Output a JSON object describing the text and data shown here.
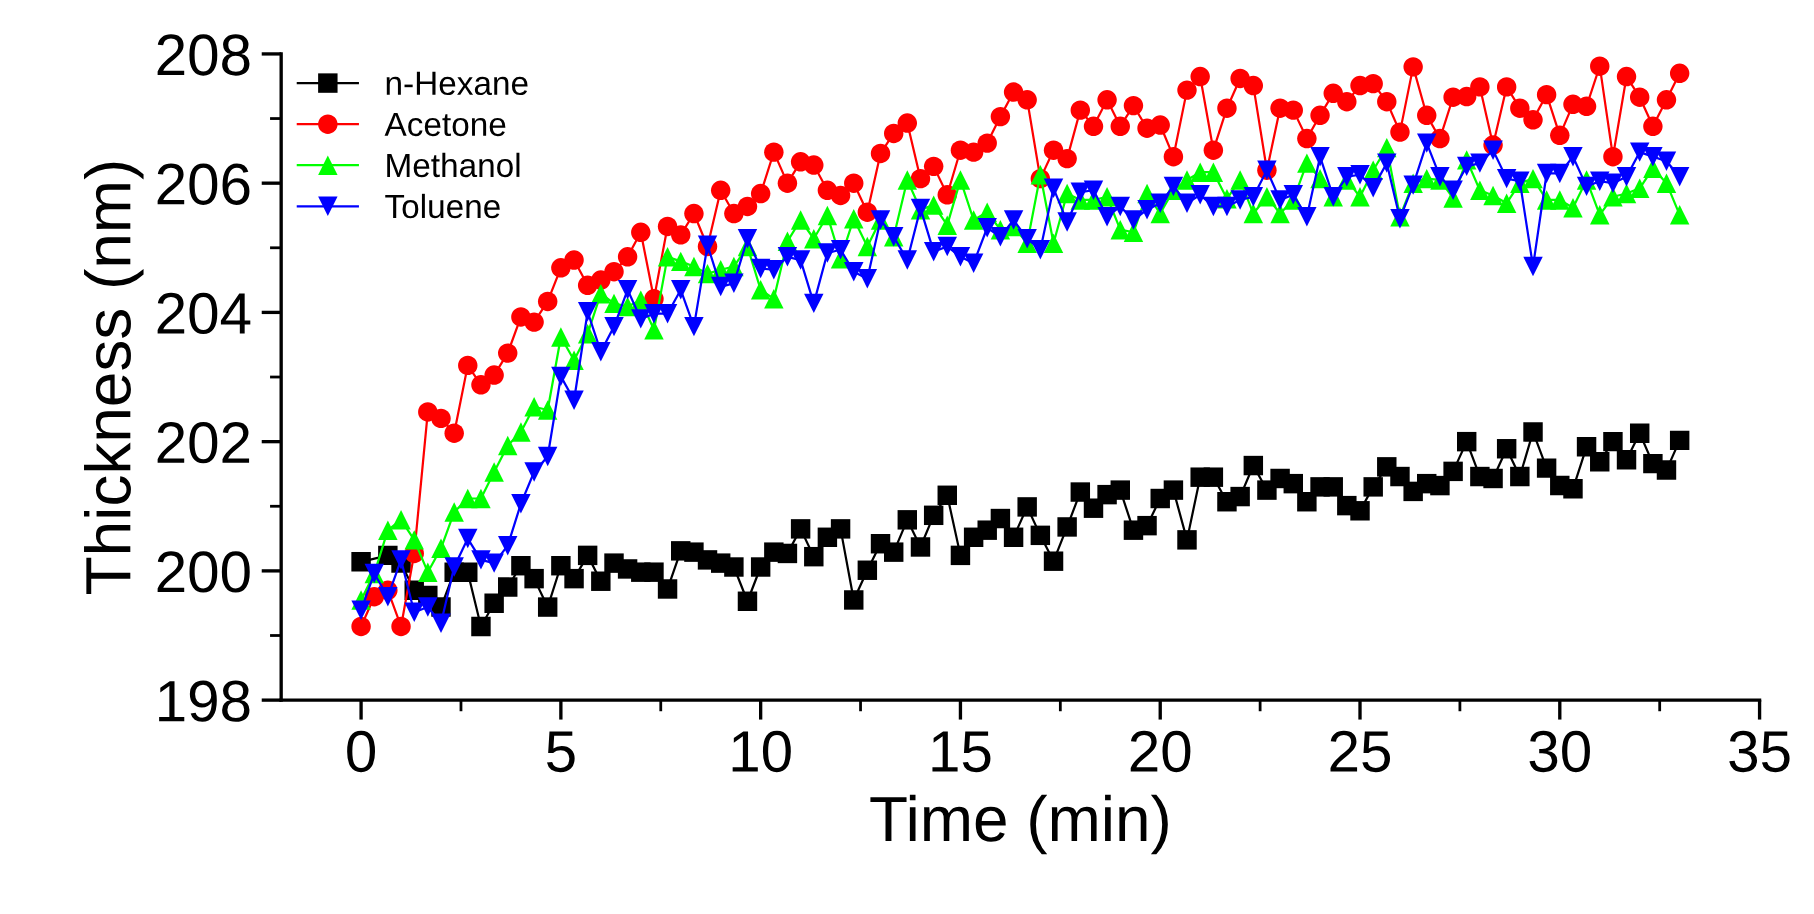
{
  "chart_data": {
    "type": "line",
    "xlabel": "Time (min)",
    "ylabel": "Thickness (nm)",
    "xlim": [
      -2,
      35
    ],
    "ylim": [
      198,
      208
    ],
    "xticks": [
      0,
      {
        "value": 2.5,
        "label": null
      },
      5,
      {
        "value": 7.5,
        "label": null
      },
      10,
      {
        "value": 12.5,
        "label": null
      },
      15,
      {
        "value": 17.5,
        "label": null
      },
      20,
      {
        "value": 22.5,
        "label": null
      },
      25,
      {
        "value": 27.5,
        "label": null
      },
      30,
      {
        "value": 32.5,
        "label": null
      },
      35
    ],
    "yticks": [
      198,
      {
        "value": 199,
        "label": null
      },
      200,
      {
        "value": 201,
        "label": null
      },
      202,
      {
        "value": 203,
        "label": null
      },
      204,
      {
        "value": 205,
        "label": null
      },
      206,
      {
        "value": 207,
        "label": null
      },
      208
    ],
    "grid": false,
    "legend": "top left",
    "line_style": "solid",
    "x": [
      0,
      0.33,
      0.67,
      1,
      1.33,
      1.67,
      2,
      2.33,
      2.67,
      3,
      3.33,
      3.67,
      4,
      4.33,
      4.67,
      5,
      5.33,
      5.67,
      6,
      6.33,
      6.67,
      7,
      7.33,
      7.67,
      8,
      8.33,
      8.67,
      9,
      9.33,
      9.67,
      10,
      10.33,
      10.67,
      11,
      11.33,
      11.67,
      12,
      12.33,
      12.67,
      13,
      13.33,
      13.67,
      14,
      14.33,
      14.67,
      15,
      15.33,
      15.67,
      16,
      16.33,
      16.67,
      17,
      17.33,
      17.67,
      18,
      18.33,
      18.67,
      19,
      19.33,
      19.67,
      20,
      20.33,
      20.67,
      21,
      21.33,
      21.67,
      22,
      22.33,
      22.67,
      23,
      23.33,
      23.67,
      24,
      24.33,
      24.67,
      25,
      25.33,
      25.67,
      26,
      26.33,
      26.67,
      27,
      27.33,
      27.67,
      28,
      28.33,
      28.67,
      29,
      29.33,
      29.67,
      30,
      30.33,
      30.67,
      31,
      31.33,
      31.67,
      32,
      32.33,
      32.67,
      33
    ],
    "series": [
      {
        "name": "n-Hexane",
        "color": "#000000",
        "marker": "square",
        "x": [
          0,
          0.67,
          1,
          1.33,
          1.67,
          2,
          2.33,
          2.67,
          3,
          3.33,
          3.67,
          4,
          4.33,
          4.67,
          5,
          5.33,
          5.67,
          6,
          6.33,
          6.67,
          7,
          7.33,
          7.67,
          8,
          8.33,
          8.67,
          9,
          9.33,
          9.67,
          10,
          10.33,
          10.67,
          11,
          11.33,
          11.67,
          12,
          12.33,
          12.67,
          13,
          13.33,
          13.67,
          14,
          14.33,
          14.67,
          15,
          15.33,
          15.67,
          16,
          16.33,
          16.67,
          17,
          17.33,
          17.67,
          18,
          18.33,
          18.67,
          19,
          19.33,
          19.67,
          20,
          20.33,
          20.67,
          21,
          21.33,
          21.67,
          22,
          22.33,
          22.67,
          23,
          23.33,
          23.67,
          24,
          24.33,
          24.67,
          25,
          25.33,
          25.67,
          26,
          26.33,
          26.67,
          27,
          27.33,
          27.67,
          28,
          28.33,
          28.67,
          29,
          29.33,
          29.67,
          30,
          30.33,
          30.67,
          31,
          31.33,
          31.67,
          32,
          32.33,
          32.67,
          33
        ],
        "values": [
          200.14,
          200.24,
          200.12,
          199.7,
          199.62,
          199.44,
          199.98,
          199.98,
          199.14,
          199.5,
          199.75,
          200.08,
          199.88,
          199.44,
          200.08,
          199.88,
          200.24,
          199.84,
          200.12,
          200.03,
          199.98,
          199.98,
          199.72,
          200.31,
          200.29,
          200.17,
          200.12,
          200.06,
          199.53,
          200.06,
          200.29,
          200.27,
          200.65,
          200.22,
          200.52,
          200.65,
          199.55,
          200.01,
          200.42,
          200.29,
          200.79,
          200.37,
          200.86,
          201.17,
          200.24,
          200.52,
          200.63,
          200.81,
          200.52,
          200.99,
          200.55,
          200.15,
          200.68,
          201.22,
          200.97,
          201.18,
          201.25,
          200.63,
          200.7,
          201.12,
          201.25,
          200.48,
          201.45,
          201.45,
          201.07,
          201.15,
          201.63,
          201.25,
          201.43,
          201.35,
          201.07,
          201.3,
          201.3,
          201.01,
          200.93,
          201.3,
          201.61,
          201.46,
          201.23,
          201.35,
          201.32,
          201.54,
          202.0,
          201.46,
          201.43,
          201.89,
          201.46,
          202.15,
          201.59,
          201.32,
          201.27,
          201.92,
          201.69,
          202.0,
          201.72,
          202.13,
          201.66,
          201.56,
          202.02
        ]
      },
      {
        "name": "Acetone",
        "color": "#ff0000",
        "marker": "circle",
        "values": [
          199.14,
          199.6,
          199.7,
          199.14,
          200.27,
          202.46,
          202.36,
          202.13,
          203.18,
          202.88,
          203.03,
          203.37,
          203.93,
          203.85,
          204.17,
          204.69,
          204.81,
          204.42,
          204.5,
          204.63,
          204.86,
          205.24,
          204.21,
          205.33,
          205.2,
          205.53,
          205.02,
          205.89,
          205.53,
          205.64,
          205.84,
          206.48,
          206.0,
          206.33,
          206.28,
          205.89,
          205.81,
          206.0,
          205.55,
          206.46,
          206.77,
          206.93,
          206.07,
          206.26,
          205.82,
          206.51,
          206.48,
          206.62,
          207.03,
          207.41,
          207.29,
          206.07,
          206.51,
          206.38,
          207.13,
          206.88,
          207.29,
          206.88,
          207.2,
          206.85,
          206.9,
          206.41,
          207.44,
          207.65,
          206.51,
          207.16,
          207.62,
          207.51,
          206.2,
          207.16,
          207.13,
          206.69,
          207.05,
          207.39,
          207.26,
          207.51,
          207.54,
          207.26,
          206.79,
          207.8,
          207.05,
          206.69,
          207.33,
          207.34,
          207.49,
          206.59,
          207.49,
          207.16,
          206.98,
          207.37,
          206.74,
          207.22,
          207.19,
          207.81,
          206.41,
          207.65,
          207.33,
          206.88,
          207.29,
          207.7
        ]
      },
      {
        "name": "Methanol",
        "color": "#00ff00",
        "marker": "triangle",
        "values": [
          199.55,
          199.96,
          200.63,
          200.79,
          200.48,
          199.98,
          200.35,
          200.91,
          201.12,
          201.12,
          201.53,
          201.94,
          202.15,
          202.54,
          202.49,
          203.62,
          203.26,
          203.67,
          204.29,
          204.14,
          204.09,
          204.19,
          203.73,
          204.86,
          204.79,
          204.71,
          204.6,
          204.66,
          204.71,
          205.02,
          204.35,
          204.21,
          205.1,
          205.43,
          205.14,
          205.5,
          204.83,
          205.45,
          205.02,
          205.43,
          205.17,
          206.05,
          205.59,
          205.66,
          205.35,
          206.05,
          205.43,
          205.55,
          205.28,
          205.33,
          205.07,
          206.13,
          205.07,
          205.84,
          205.74,
          205.74,
          205.79,
          205.28,
          205.24,
          205.84,
          205.53,
          205.89,
          206.05,
          206.17,
          206.17,
          205.76,
          206.05,
          205.53,
          205.79,
          205.53,
          205.74,
          206.31,
          206.07,
          205.79,
          206.05,
          205.79,
          206.2,
          206.55,
          205.48,
          206.0,
          206.07,
          206.05,
          205.77,
          206.36,
          205.89,
          205.81,
          205.69,
          206.0,
          206.07,
          205.74,
          205.74,
          205.62,
          206.05,
          205.51,
          205.79,
          205.84,
          205.92,
          206.23,
          206.0,
          205.51
        ]
      },
      {
        "name": "Toluene",
        "color": "#0000ff",
        "marker": "triangle_down",
        "values": [
          199.39,
          199.96,
          199.6,
          200.17,
          199.36,
          199.44,
          199.19,
          200.06,
          200.5,
          200.17,
          200.12,
          200.39,
          201.04,
          201.53,
          201.77,
          203.01,
          202.64,
          204.01,
          203.39,
          203.78,
          204.35,
          203.9,
          203.98,
          203.98,
          204.35,
          203.78,
          205.04,
          204.4,
          204.45,
          205.14,
          204.68,
          204.66,
          204.86,
          204.81,
          204.14,
          204.92,
          204.97,
          204.63,
          204.52,
          205.43,
          205.17,
          204.81,
          205.61,
          204.94,
          205.02,
          204.86,
          204.76,
          205.31,
          205.17,
          205.43,
          205.14,
          204.97,
          205.92,
          205.4,
          205.86,
          205.89,
          205.48,
          205.64,
          205.43,
          205.59,
          205.69,
          205.95,
          205.69,
          205.82,
          205.64,
          205.64,
          205.74,
          205.79,
          206.2,
          205.74,
          205.82,
          205.48,
          206.41,
          205.79,
          206.1,
          206.13,
          205.93,
          206.31,
          205.45,
          205.97,
          206.62,
          206.1,
          205.89,
          206.26,
          206.31,
          206.51,
          206.07,
          206.03,
          204.71,
          206.15,
          206.15,
          206.41,
          205.95,
          206.03,
          206.0,
          206.1,
          206.48,
          206.41,
          206.34,
          206.1
        ]
      }
    ]
  }
}
